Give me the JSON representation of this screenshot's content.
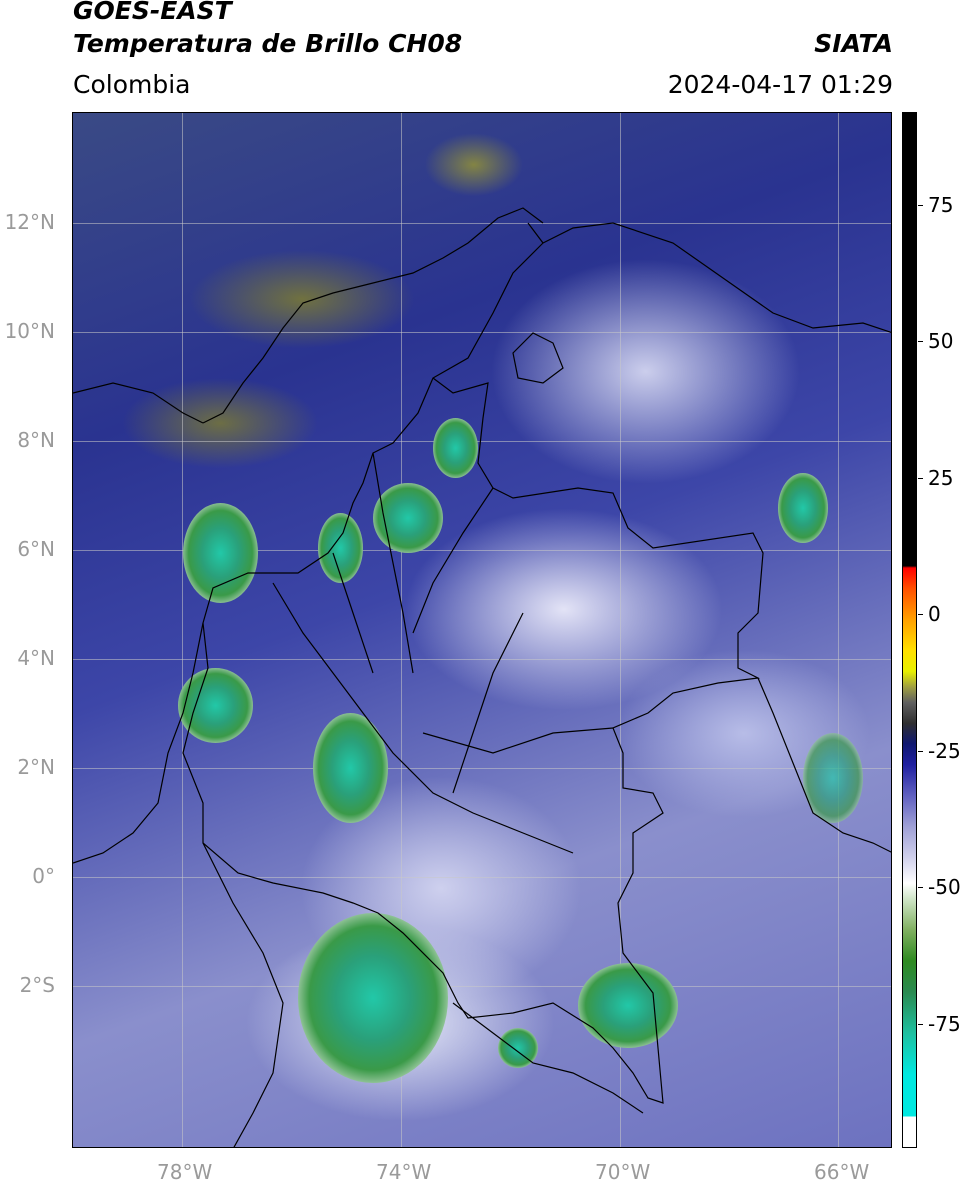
{
  "header": {
    "line1": "GOES-EAST",
    "line2": "Temperatura de Brillo CH08",
    "org": "SIATA",
    "region": "Colombia",
    "datetime": "2024-04-17 01:29"
  },
  "map": {
    "lat_labels": [
      "12°N",
      "10°N",
      "8°N",
      "6°N",
      "4°N",
      "2°N",
      "0°",
      "2°S"
    ],
    "lon_labels": [
      "78°W",
      "74°W",
      "70°W",
      "66°W"
    ]
  },
  "colorbar": {
    "labels": [
      "75",
      "50",
      "25",
      "0",
      "-25",
      "-50",
      "-75"
    ],
    "colors": {
      "warm_top": "#000000",
      "red": "#ff0000",
      "yellow": "#ffe000",
      "blue": "#2020a0",
      "white": "#ffffff",
      "green": "#2e8a20",
      "cyan": "#00e8e0"
    }
  }
}
